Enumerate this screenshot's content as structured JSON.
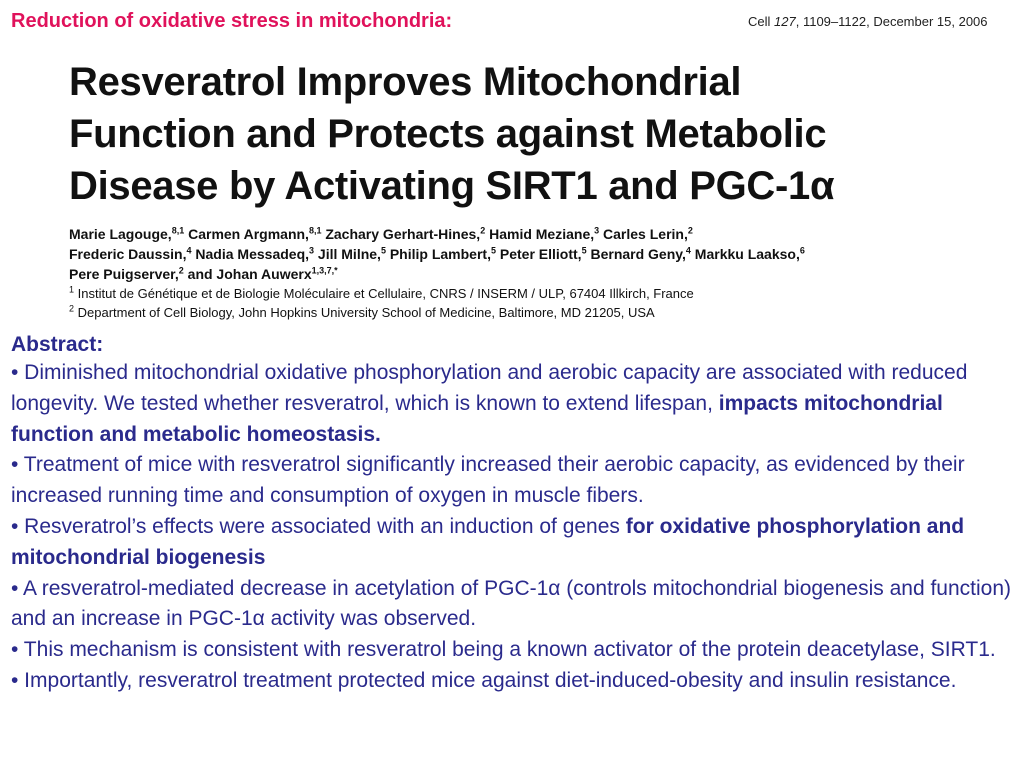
{
  "slide_title": "Reduction of oxidative stress in mitochondria:",
  "citation": {
    "journal": "Cell",
    "volume": "127",
    "pages_date": ", 1109–1122, December 15, 2006"
  },
  "paper": {
    "title_lines": [
      "Resveratrol Improves Mitochondrial",
      "Function and Protects against Metabolic",
      "Disease by Activating SIRT1 and PGC-1α"
    ],
    "authors": [
      {
        "name": "Marie Lagouge,",
        "sup": "8,1"
      },
      {
        "name": " Carmen Argmann,",
        "sup": "8,1"
      },
      {
        "name": " Zachary Gerhart-Hines,",
        "sup": "2"
      },
      {
        "name": " Hamid Meziane,",
        "sup": "3"
      },
      {
        "name": " Carles Lerin,",
        "sup": "2"
      },
      {
        "name": " Frederic Daussin,",
        "sup": "4"
      },
      {
        "name": " Nadia Messadeq,",
        "sup": "3"
      },
      {
        "name": " Jill Milne,",
        "sup": "5"
      },
      {
        "name": " Philip Lambert,",
        "sup": "5"
      },
      {
        "name": " Peter Elliott,",
        "sup": "5"
      },
      {
        "name": " Bernard Geny,",
        "sup": "4"
      },
      {
        "name": " Markku Laakso,",
        "sup": "6"
      },
      {
        "name": " Pere Puigserver,",
        "sup": "2"
      },
      {
        "name": " and Johan Auwerx",
        "sup": "1,3,7,*"
      }
    ],
    "affiliations": [
      {
        "num": "1",
        "text": "Institut de Génétique et de Biologie Moléculaire et Cellulaire, CNRS / INSERM / ULP, 67404 Illkirch, France"
      },
      {
        "num": "2",
        "text": "Department of Cell Biology, John Hopkins University School of Medicine, Baltimore, MD 21205, USA"
      }
    ]
  },
  "abstract": {
    "heading": "Abstract:",
    "bullets": [
      {
        "text": "• Diminished mitochondrial oxidative phosphorylation and aerobic capacity are associated with reduced longevity. We tested whether resveratrol, which is known to extend lifespan, ",
        "bold": "impacts mitochondrial function and metabolic homeostasis.",
        "after": ""
      },
      {
        "text": "• Treatment of mice with resveratrol significantly increased their aerobic capacity, as evidenced by their increased running time and consumption of oxygen in muscle fibers.",
        "bold": "",
        "after": ""
      },
      {
        "text": "• Resveratrol’s effects were associated with an induction of genes ",
        "bold": "for oxidative phosphorylation and mitochondrial biogenesis",
        "after": ""
      },
      {
        "text": "• A resveratrol-mediated decrease in acetylation of PGC-1α (controls mitochondrial biogenesis and function) and an increase in PGC-1α activity was observed.",
        "bold": "",
        "after": ""
      },
      {
        "text": "• This mechanism is consistent with resveratrol being a known activator of the protein deacetylase, SIRT1.",
        "bold": "",
        "after": ""
      },
      {
        "text": "• Importantly, resveratrol treatment protected mice against diet-induced-obesity and insulin resistance.",
        "bold": "",
        "after": ""
      }
    ]
  }
}
